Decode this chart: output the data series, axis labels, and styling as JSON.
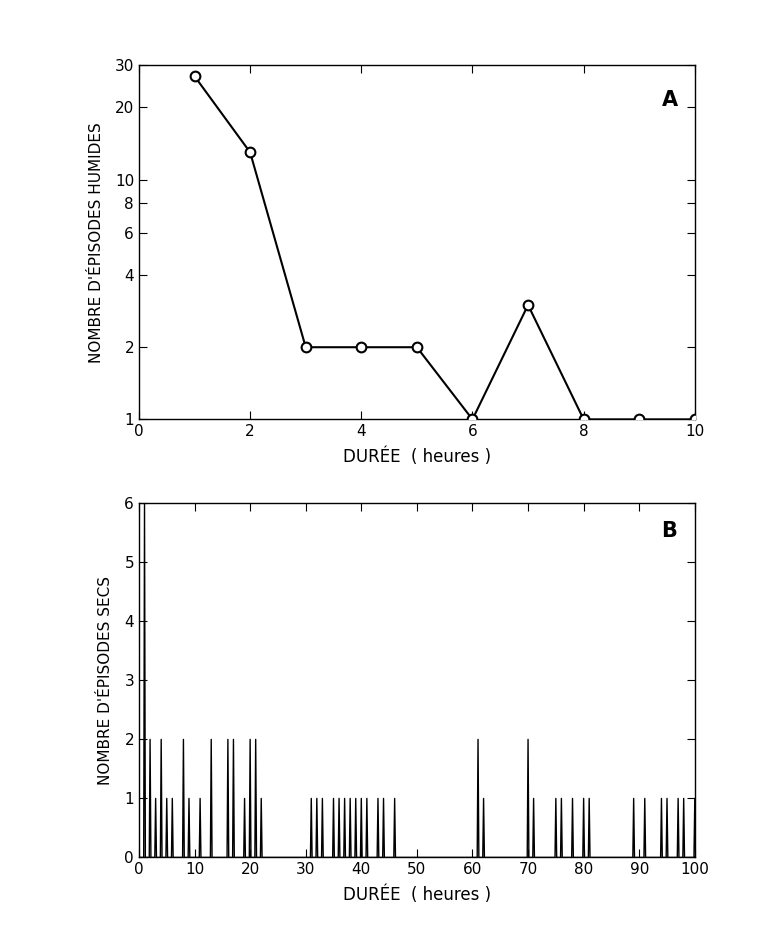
{
  "plot_a": {
    "x": [
      1,
      2,
      3,
      4,
      5,
      6,
      7,
      8,
      9,
      10
    ],
    "y": [
      27,
      13,
      2,
      2,
      2,
      1,
      3,
      1,
      1,
      1
    ],
    "ylabel": "NOMBRE D'ÉPISODES HUMIDES",
    "xlabel": "DURÉE  ( heures )",
    "label": "A",
    "xlim": [
      0,
      10
    ],
    "ylim_log": [
      1,
      30
    ],
    "yticks": [
      1,
      2,
      4,
      6,
      8,
      10,
      20,
      30
    ],
    "xticks": [
      0,
      2,
      4,
      6,
      8,
      10
    ]
  },
  "plot_b": {
    "x": [
      1,
      2,
      3,
      4,
      5,
      6,
      7,
      8,
      9,
      10,
      11,
      12,
      13,
      14,
      15,
      16,
      17,
      18,
      19,
      20,
      21,
      22,
      23,
      24,
      25,
      26,
      27,
      28,
      29,
      30,
      31,
      32,
      33,
      34,
      35,
      36,
      37,
      38,
      39,
      40,
      41,
      42,
      43,
      44,
      45,
      46,
      47,
      48,
      49,
      50,
      51,
      52,
      53,
      54,
      55,
      56,
      57,
      58,
      59,
      60,
      61,
      62,
      63,
      64,
      65,
      66,
      67,
      68,
      69,
      70,
      71,
      72,
      73,
      74,
      75,
      76,
      77,
      78,
      79,
      80,
      81,
      82,
      83,
      84,
      85,
      86,
      87,
      88,
      89,
      90,
      91,
      92,
      93,
      94,
      95,
      96,
      97,
      98,
      99,
      100
    ],
    "y": [
      6,
      2,
      1,
      2,
      1,
      1,
      0,
      2,
      1,
      0,
      1,
      0,
      2,
      0,
      0,
      2,
      2,
      0,
      1,
      2,
      2,
      1,
      0,
      0,
      0,
      0,
      0,
      0,
      0,
      0,
      1,
      1,
      1,
      0,
      1,
      1,
      1,
      1,
      1,
      1,
      1,
      0,
      1,
      1,
      0,
      1,
      0,
      0,
      0,
      0,
      0,
      0,
      0,
      0,
      0,
      0,
      0,
      0,
      0,
      0,
      2,
      1,
      0,
      0,
      0,
      0,
      0,
      0,
      0,
      2,
      1,
      0,
      0,
      0,
      1,
      1,
      0,
      1,
      0,
      1,
      1,
      0,
      0,
      0,
      0,
      0,
      0,
      0,
      1,
      0,
      1,
      0,
      0,
      1,
      1,
      0,
      1,
      1,
      0,
      1
    ],
    "ylabel": "NOMBRE D'ÉPISODES SECS",
    "xlabel": "DURÉE  ( heures )",
    "label": "B",
    "xlim": [
      0,
      100
    ],
    "ylim": [
      0,
      6
    ],
    "yticks": [
      0,
      1,
      2,
      3,
      4,
      5,
      6
    ],
    "xticks": [
      0,
      10,
      20,
      30,
      40,
      50,
      60,
      70,
      80,
      90,
      100
    ]
  }
}
